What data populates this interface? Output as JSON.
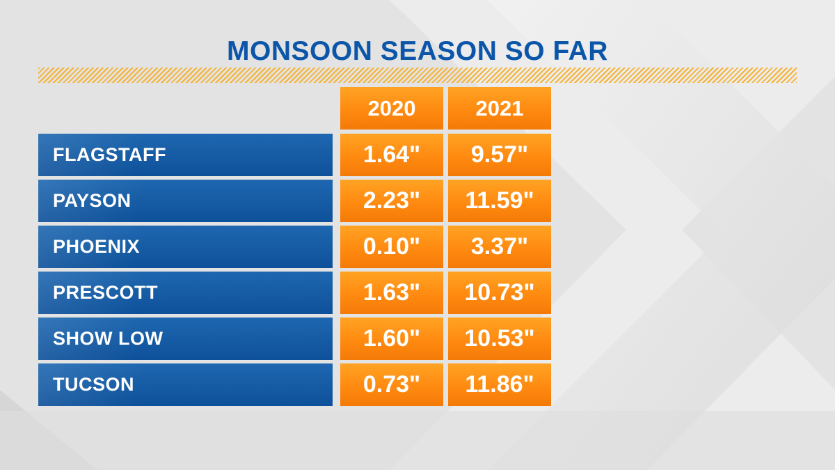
{
  "title": "MONSOON SEASON SO FAR",
  "colors": {
    "title": "#0b56a8",
    "row_label_bg": "#0e519a",
    "cell_bg": "#ff8a10",
    "stripe": "#f5b335",
    "background": "#e6e6e6"
  },
  "chart_data": {
    "type": "table",
    "title": "MONSOON SEASON SO FAR",
    "columns": [
      "2020",
      "2021"
    ],
    "rows": [
      {
        "city": "FLAGSTAFF",
        "values": [
          "1.64\"",
          "9.57\""
        ]
      },
      {
        "city": "PAYSON",
        "values": [
          "2.23\"",
          "11.59\""
        ]
      },
      {
        "city": "PHOENIX",
        "values": [
          "0.10\"",
          "3.37\""
        ]
      },
      {
        "city": "PRESCOTT",
        "values": [
          "1.63\"",
          "10.73\""
        ]
      },
      {
        "city": "SHOW LOW",
        "values": [
          "1.60\"",
          "10.53\""
        ]
      },
      {
        "city": "TUCSON",
        "values": [
          "0.73\"",
          "11.86\""
        ]
      }
    ]
  }
}
